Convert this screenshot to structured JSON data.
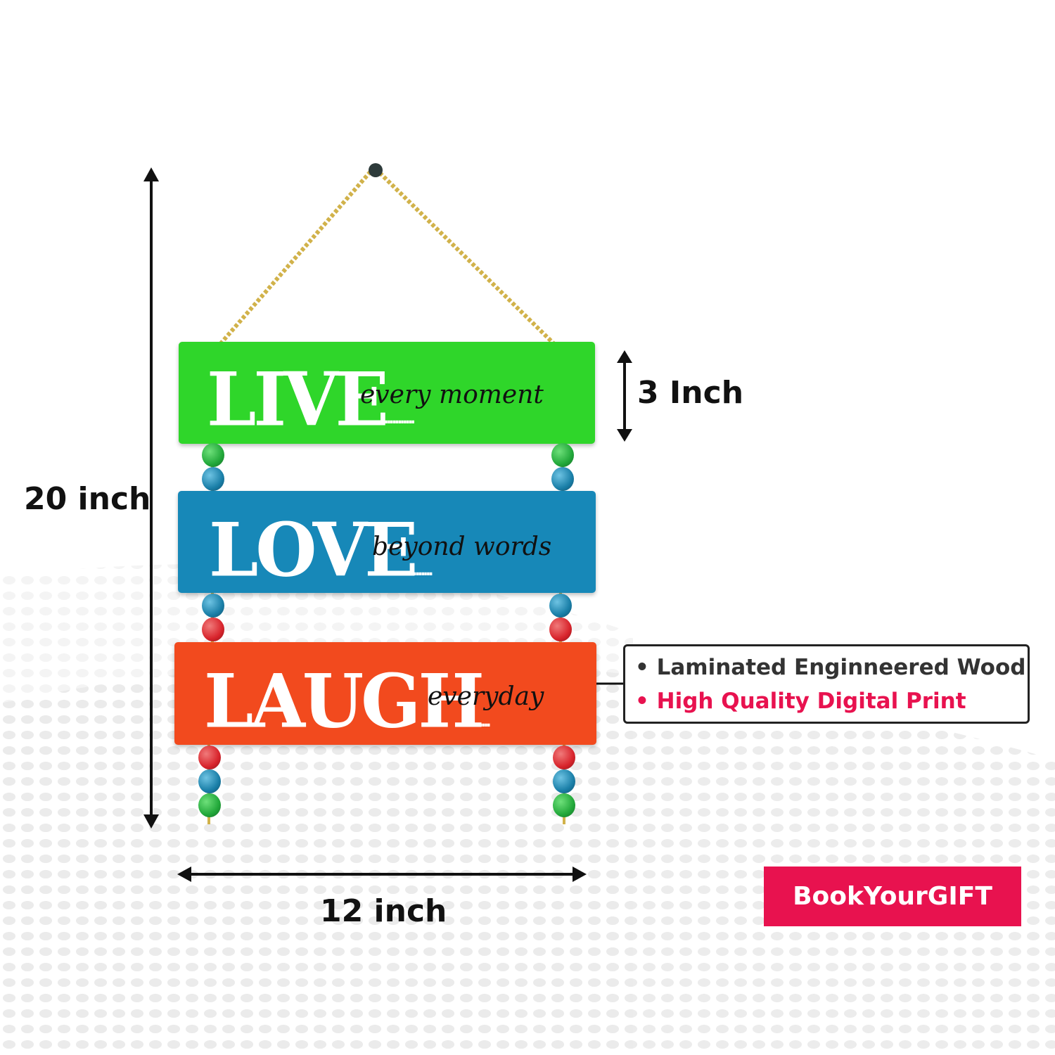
{
  "dimensions": {
    "height_label": "20 inch",
    "width_label": "12 inch",
    "plank_height_label": "3 Inch"
  },
  "planks": [
    {
      "word": "LIVE",
      "script": "every moment",
      "dots": "............",
      "color": "#2fd62a"
    },
    {
      "word": "LOVE",
      "script": "beyond words",
      "dots": "..........",
      "color": "#1788b8"
    },
    {
      "word": "LAUGH",
      "script": "everyday",
      "dots": "....",
      "color": "#f24a1e"
    }
  ],
  "features": [
    {
      "bullet": "•",
      "text": "Laminated Enginneered Wood",
      "color": "#333333"
    },
    {
      "bullet": "•",
      "text": "High Quality Digital Print",
      "color": "#e8124f"
    }
  ],
  "brand": {
    "logo_text": "BookYourGIFT",
    "color": "#e8124f"
  },
  "colors": {
    "bead_green": "#22a83a",
    "bead_blue": "#1a7fa8",
    "bead_red": "#d8242c",
    "rope": "#d1b24a"
  }
}
